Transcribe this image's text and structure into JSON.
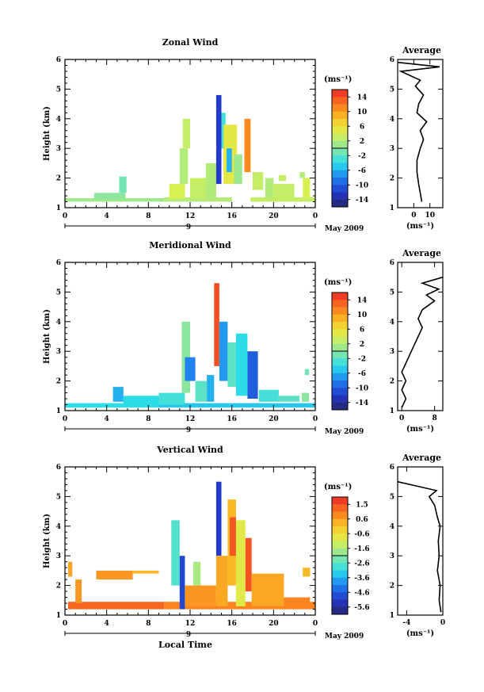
{
  "figure": {
    "x_axis_label": "Local Time",
    "date_label": "May 2009",
    "day_label": "9",
    "colorbar_unit": "(ms⁻¹)",
    "average_title": "Average",
    "average_unit": "(ms⁻¹)"
  },
  "chart_data": [
    {
      "type": "heatmap",
      "title": "Zonal Wind",
      "xlabel": "",
      "ylabel": "Height (km)",
      "xlim": [
        0,
        24
      ],
      "ylim": [
        1,
        6
      ],
      "xticks": [
        "0",
        "4",
        "8",
        "12",
        "16",
        "20",
        "0"
      ],
      "yticks": [
        "1",
        "2",
        "3",
        "4",
        "5",
        "6"
      ],
      "colorbar": {
        "range": [
          -16,
          16
        ],
        "ticks": [
          "14",
          "10",
          "6",
          "2",
          "-2",
          "-6",
          "-10",
          "-14"
        ]
      },
      "average": {
        "xlim": [
          -10,
          18
        ],
        "xticks": [
          "0",
          "10"
        ],
        "profile": [
          [
            5,
            1.2
          ],
          [
            4,
            1.5
          ],
          [
            3,
            1.8
          ],
          [
            2,
            2.2
          ],
          [
            2,
            2.6
          ],
          [
            4,
            3.0
          ],
          [
            6,
            3.3
          ],
          [
            4,
            3.6
          ],
          [
            8,
            3.9
          ],
          [
            2,
            4.2
          ],
          [
            3,
            4.5
          ],
          [
            6,
            4.8
          ],
          [
            1,
            5.1
          ],
          [
            4,
            5.3
          ],
          [
            -8,
            5.6
          ],
          [
            16,
            5.75
          ],
          [
            -10,
            5.9
          ]
        ]
      },
      "blocks": [
        {
          "t": [
            0.0,
            9.5
          ],
          "h": [
            1.2,
            1.32
          ],
          "v": 1
        },
        {
          "t": [
            9.5,
            16.0
          ],
          "h": [
            1.2,
            1.35
          ],
          "v": 2
        },
        {
          "t": [
            17.8,
            24.0
          ],
          "h": [
            1.2,
            1.35
          ],
          "v": 3
        },
        {
          "t": [
            2.8,
            5.8
          ],
          "h": [
            1.3,
            1.5
          ],
          "v": 0
        },
        {
          "t": [
            5.2,
            5.9
          ],
          "h": [
            1.5,
            2.05
          ],
          "v": -1
        },
        {
          "t": [
            10.0,
            11.5
          ],
          "h": [
            1.3,
            1.8
          ],
          "v": 4
        },
        {
          "t": [
            11.0,
            11.8
          ],
          "h": [
            1.8,
            3.0
          ],
          "v": 2
        },
        {
          "t": [
            11.3,
            12.0
          ],
          "h": [
            3.0,
            4.0
          ],
          "v": 3
        },
        {
          "t": [
            12.0,
            13.6
          ],
          "h": [
            1.3,
            2.0
          ],
          "v": 3
        },
        {
          "t": [
            13.5,
            14.5
          ],
          "h": [
            1.3,
            2.5
          ],
          "v": 2
        },
        {
          "t": [
            14.5,
            15.0
          ],
          "h": [
            1.8,
            4.8
          ],
          "v": -12
        },
        {
          "t": [
            15.0,
            15.4
          ],
          "h": [
            3.0,
            4.2
          ],
          "v": -3
        },
        {
          "t": [
            15.2,
            16.5
          ],
          "h": [
            1.8,
            3.8
          ],
          "v": 5
        },
        {
          "t": [
            15.5,
            16.0
          ],
          "h": [
            2.2,
            3.0
          ],
          "v": -6
        },
        {
          "t": [
            16.2,
            17.0
          ],
          "h": [
            1.8,
            2.8
          ],
          "v": 1
        },
        {
          "t": [
            17.2,
            17.8
          ],
          "h": [
            2.2,
            4.0
          ],
          "v": 11
        },
        {
          "t": [
            18.0,
            19.0
          ],
          "h": [
            1.6,
            2.2
          ],
          "v": 3
        },
        {
          "t": [
            19.2,
            20.0
          ],
          "h": [
            1.3,
            2.0
          ],
          "v": 2
        },
        {
          "t": [
            20.0,
            22.0
          ],
          "h": [
            1.3,
            1.8
          ],
          "v": 3
        },
        {
          "t": [
            22.8,
            23.5
          ],
          "h": [
            1.3,
            2.0
          ],
          "v": 4
        },
        {
          "t": [
            22.5,
            23.0
          ],
          "h": [
            2.0,
            2.2
          ],
          "v": 2
        },
        {
          "t": [
            20.5,
            21.2
          ],
          "h": [
            1.9,
            2.1
          ],
          "v": 3
        }
      ]
    },
    {
      "type": "heatmap",
      "title": "Meridional Wind",
      "xlabel": "",
      "ylabel": "Height (km)",
      "xlim": [
        0,
        24
      ],
      "ylim": [
        1,
        6
      ],
      "xticks": [
        "0",
        "4",
        "8",
        "12",
        "16",
        "20",
        "0"
      ],
      "yticks": [
        "1",
        "2",
        "3",
        "4",
        "5",
        "6"
      ],
      "colorbar": {
        "range": [
          -16,
          16
        ],
        "ticks": [
          "14",
          "10",
          "6",
          "2",
          "-2",
          "-6",
          "-10",
          "-14"
        ]
      },
      "average": {
        "xlim": [
          -1,
          10
        ],
        "xticks": [
          "0",
          "8"
        ],
        "profile": [
          [
            0,
            1.1
          ],
          [
            1,
            1.4
          ],
          [
            0,
            1.7
          ],
          [
            1,
            2.0
          ],
          [
            0,
            2.3
          ],
          [
            1,
            2.6
          ],
          [
            2,
            2.9
          ],
          [
            3,
            3.2
          ],
          [
            4,
            3.5
          ],
          [
            5,
            3.8
          ],
          [
            4,
            4.1
          ],
          [
            5,
            4.4
          ],
          [
            8,
            4.7
          ],
          [
            6,
            4.9
          ],
          [
            9,
            5.1
          ],
          [
            5,
            5.3
          ],
          [
            10,
            5.5
          ]
        ]
      },
      "blocks": [
        {
          "t": [
            0.0,
            9.0
          ],
          "h": [
            1.1,
            1.25
          ],
          "v": -4
        },
        {
          "t": [
            9.0,
            24.0
          ],
          "h": [
            1.1,
            1.25
          ],
          "v": -5
        },
        {
          "t": [
            4.6,
            5.6
          ],
          "h": [
            1.3,
            1.8
          ],
          "v": -6
        },
        {
          "t": [
            5.6,
            9.0
          ],
          "h": [
            1.2,
            1.5
          ],
          "v": -4
        },
        {
          "t": [
            9.0,
            11.5
          ],
          "h": [
            1.2,
            1.6
          ],
          "v": -3
        },
        {
          "t": [
            11.2,
            12.0
          ],
          "h": [
            1.6,
            4.0
          ],
          "v": 0
        },
        {
          "t": [
            11.5,
            12.5
          ],
          "h": [
            2.0,
            2.8
          ],
          "v": -8
        },
        {
          "t": [
            12.5,
            13.6
          ],
          "h": [
            1.3,
            2.0
          ],
          "v": -2
        },
        {
          "t": [
            13.6,
            14.3
          ],
          "h": [
            1.3,
            2.2
          ],
          "v": -6
        },
        {
          "t": [
            14.3,
            14.8
          ],
          "h": [
            2.5,
            5.3
          ],
          "v": 14
        },
        {
          "t": [
            14.8,
            15.6
          ],
          "h": [
            2.0,
            4.0
          ],
          "v": -7
        },
        {
          "t": [
            15.6,
            16.4
          ],
          "h": [
            1.8,
            3.3
          ],
          "v": -2
        },
        {
          "t": [
            16.4,
            17.5
          ],
          "h": [
            1.5,
            3.6
          ],
          "v": -4
        },
        {
          "t": [
            17.5,
            18.5
          ],
          "h": [
            1.4,
            3.0
          ],
          "v": -10
        },
        {
          "t": [
            18.6,
            20.5
          ],
          "h": [
            1.3,
            1.7
          ],
          "v": -3
        },
        {
          "t": [
            20.5,
            22.5
          ],
          "h": [
            1.3,
            1.5
          ],
          "v": -2
        },
        {
          "t": [
            22.7,
            23.4
          ],
          "h": [
            1.3,
            1.6
          ],
          "v": 0
        },
        {
          "t": [
            23.0,
            23.4
          ],
          "h": [
            2.2,
            2.4
          ],
          "v": -1
        }
      ]
    },
    {
      "type": "heatmap",
      "title": "Vertical Wind",
      "xlabel": "Local Time",
      "ylabel": "Height (km)",
      "xlim": [
        0,
        24
      ],
      "ylim": [
        1,
        6
      ],
      "xticks": [
        "0",
        "4",
        "8",
        "12",
        "16",
        "20",
        "0"
      ],
      "yticks": [
        "1",
        "2",
        "3",
        "4",
        "5",
        "6"
      ],
      "colorbar": {
        "range": [
          -6,
          2
        ],
        "ticks": [
          "1.5",
          "0.6",
          "-0.6",
          "-1.6",
          "-2.6",
          "-3.6",
          "-4.6",
          "-5.6"
        ]
      },
      "average": {
        "xlim": [
          -5,
          0
        ],
        "xticks": [
          "-4",
          "0"
        ],
        "profile": [
          [
            -0.2,
            1.1
          ],
          [
            -0.4,
            1.5
          ],
          [
            -0.3,
            2.0
          ],
          [
            -0.6,
            2.5
          ],
          [
            -0.4,
            3.0
          ],
          [
            -0.5,
            3.5
          ],
          [
            -0.3,
            4.0
          ],
          [
            -0.6,
            4.3
          ],
          [
            -0.9,
            4.7
          ],
          [
            -1.5,
            5.0
          ],
          [
            -0.7,
            5.2
          ],
          [
            -5,
            5.5
          ]
        ]
      },
      "blocks": [
        {
          "t": [
            0.3,
            9.5
          ],
          "h": [
            1.2,
            1.45
          ],
          "v": 1.2
        },
        {
          "t": [
            9.5,
            24.0
          ],
          "h": [
            1.2,
            1.45
          ],
          "v": 0.8
        },
        {
          "t": [
            0.3,
            0.7
          ],
          "h": [
            2.3,
            2.8
          ],
          "v": 0.4
        },
        {
          "t": [
            1.0,
            1.6
          ],
          "h": [
            1.4,
            2.2
          ],
          "v": 0.6
        },
        {
          "t": [
            3.0,
            6.5
          ],
          "h": [
            2.2,
            2.5
          ],
          "v": 0.6
        },
        {
          "t": [
            6.5,
            9.0
          ],
          "h": [
            2.4,
            2.5
          ],
          "v": 0.2
        },
        {
          "t": [
            10.2,
            11.0
          ],
          "h": [
            2.0,
            4.2
          ],
          "v": -2.6
        },
        {
          "t": [
            11.0,
            11.5
          ],
          "h": [
            1.2,
            3.0
          ],
          "v": -4.8
        },
        {
          "t": [
            11.5,
            14.5
          ],
          "h": [
            1.3,
            2.0
          ],
          "v": 0.6
        },
        {
          "t": [
            12.3,
            13.0
          ],
          "h": [
            2.0,
            2.8
          ],
          "v": -1.6
        },
        {
          "t": [
            14.5,
            15.0
          ],
          "h": [
            3.0,
            5.5
          ],
          "v": -5.0
        },
        {
          "t": [
            14.5,
            15.6
          ],
          "h": [
            1.3,
            3.0
          ],
          "v": 0.4
        },
        {
          "t": [
            15.6,
            16.4
          ],
          "h": [
            2.0,
            4.9
          ],
          "v": 0.2
        },
        {
          "t": [
            15.8,
            16.4
          ],
          "h": [
            3.0,
            4.3
          ],
          "v": 1.4
        },
        {
          "t": [
            16.4,
            17.3
          ],
          "h": [
            1.3,
            4.2
          ],
          "v": -0.8
        },
        {
          "t": [
            17.3,
            17.9
          ],
          "h": [
            1.8,
            3.6
          ],
          "v": 1.4
        },
        {
          "t": [
            17.9,
            21.0
          ],
          "h": [
            1.3,
            2.4
          ],
          "v": 0.4
        },
        {
          "t": [
            21.0,
            23.5
          ],
          "h": [
            1.3,
            1.6
          ],
          "v": 0.8
        },
        {
          "t": [
            22.8,
            23.5
          ],
          "h": [
            2.3,
            2.6
          ],
          "v": 0.2
        }
      ]
    }
  ]
}
